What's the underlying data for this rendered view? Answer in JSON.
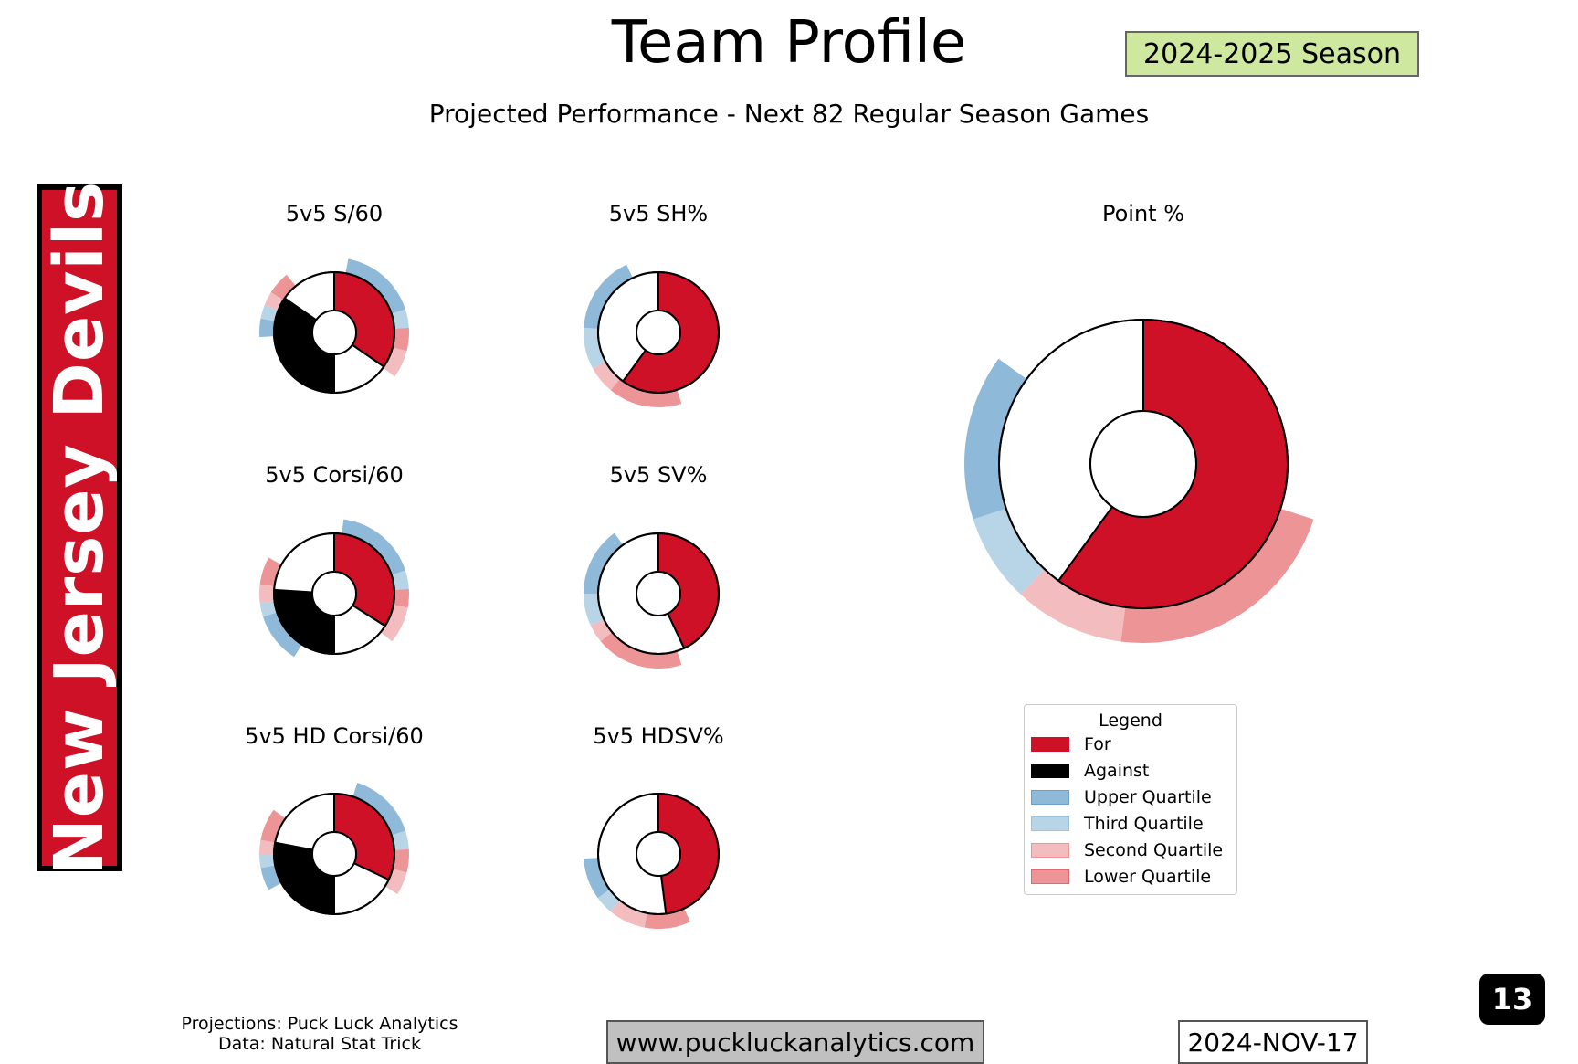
{
  "header": {
    "title": "Team Profile",
    "subtitle": "Projected Performance - Next 82 Regular Season Games",
    "season_badge": "2024-2025 Season"
  },
  "team": {
    "name": "New Jersey Devils",
    "color": "#ce1126"
  },
  "colors": {
    "for": "#ce1126",
    "against": "#000000",
    "upper_quartile": "#8fb9d9",
    "third_quartile": "#b7d5e7",
    "second_quartile": "#f3bcbe",
    "lower_quartile": "#ec9496"
  },
  "legend": {
    "title": "Legend",
    "items": [
      "For",
      "Against",
      "Upper Quartile",
      "Third Quartile",
      "Second Quartile",
      "Lower Quartile"
    ]
  },
  "chart_data": [
    {
      "type": "pie",
      "title": "5v5 S/60",
      "wedges": [
        {
          "series": "For",
          "fraction": 0.18
        },
        {
          "series": "Empty",
          "fraction": 0.08
        },
        {
          "series": "Against",
          "fraction": 0.18
        },
        {
          "series": "Empty",
          "fraction": 0.08
        }
      ],
      "quartile_ring": [
        {
          "quartile": "Upper",
          "from": 0.03,
          "to": 0.2
        },
        {
          "quartile": "Third",
          "from": 0.2,
          "to": 0.24
        },
        {
          "quartile": "Lower",
          "from": 0.24,
          "to": 0.29
        },
        {
          "quartile": "Second",
          "from": 0.29,
          "to": 0.35
        },
        {
          "quartile": "Upper",
          "from": 0.74,
          "to": 0.78
        },
        {
          "quartile": "Third",
          "from": 0.78,
          "to": 0.81
        },
        {
          "quartile": "Second",
          "from": 0.81,
          "to": 0.84
        },
        {
          "quartile": "Lower",
          "from": 0.84,
          "to": 0.89
        }
      ]
    },
    {
      "type": "pie",
      "title": "5v5 SH%",
      "wedges": [
        {
          "series": "For",
          "fraction": 0.6
        },
        {
          "series": "Empty",
          "fraction": 0.4
        }
      ],
      "quartile_ring": [
        {
          "quartile": "Lower",
          "from": 0.45,
          "to": 0.61
        },
        {
          "quartile": "Second",
          "from": 0.61,
          "to": 0.67
        },
        {
          "quartile": "Third",
          "from": 0.67,
          "to": 0.76
        },
        {
          "quartile": "Upper",
          "from": 0.76,
          "to": 0.93
        }
      ]
    },
    {
      "type": "pie",
      "title": "Point %",
      "wedges": [
        {
          "series": "For",
          "fraction": 0.6
        },
        {
          "series": "Empty",
          "fraction": 0.4
        }
      ],
      "quartile_ring": [
        {
          "quartile": "Lower",
          "from": 0.3,
          "to": 0.52
        },
        {
          "quartile": "Second",
          "from": 0.52,
          "to": 0.62
        },
        {
          "quartile": "Third",
          "from": 0.62,
          "to": 0.7
        },
        {
          "quartile": "Upper",
          "from": 0.7,
          "to": 0.85
        }
      ]
    },
    {
      "type": "pie",
      "title": "5v5 Corsi/60",
      "wedges": [
        {
          "series": "For",
          "fraction": 0.17
        },
        {
          "series": "Empty",
          "fraction": 0.08
        },
        {
          "series": "Against",
          "fraction": 0.13
        },
        {
          "series": "Empty",
          "fraction": 0.12
        }
      ],
      "quartile_ring": [
        {
          "quartile": "Upper",
          "from": 0.02,
          "to": 0.2
        },
        {
          "quartile": "Third",
          "from": 0.2,
          "to": 0.24
        },
        {
          "quartile": "Lower",
          "from": 0.24,
          "to": 0.28
        },
        {
          "quartile": "Second",
          "from": 0.28,
          "to": 0.36
        },
        {
          "quartile": "Upper",
          "from": 0.59,
          "to": 0.7
        },
        {
          "quartile": "Third",
          "from": 0.7,
          "to": 0.73
        },
        {
          "quartile": "Second",
          "from": 0.73,
          "to": 0.77
        },
        {
          "quartile": "Lower",
          "from": 0.77,
          "to": 0.83
        }
      ]
    },
    {
      "type": "pie",
      "title": "5v5 SV%",
      "wedges": [
        {
          "series": "For",
          "fraction": 0.43
        },
        {
          "series": "Empty",
          "fraction": 0.57
        }
      ],
      "quartile_ring": [
        {
          "quartile": "Lower",
          "from": 0.45,
          "to": 0.64
        },
        {
          "quartile": "Second",
          "from": 0.64,
          "to": 0.68
        },
        {
          "quartile": "Third",
          "from": 0.68,
          "to": 0.75
        },
        {
          "quartile": "Upper",
          "from": 0.75,
          "to": 0.9
        }
      ]
    },
    {
      "type": "pie",
      "title": "5v5 HD Corsi/60",
      "wedges": [
        {
          "series": "For",
          "fraction": 0.16
        },
        {
          "series": "Empty",
          "fraction": 0.09
        },
        {
          "series": "Against",
          "fraction": 0.14
        },
        {
          "series": "Empty",
          "fraction": 0.11
        }
      ],
      "quartile_ring": [
        {
          "quartile": "Upper",
          "from": 0.05,
          "to": 0.2
        },
        {
          "quartile": "Third",
          "from": 0.2,
          "to": 0.24
        },
        {
          "quartile": "Lower",
          "from": 0.24,
          "to": 0.29
        },
        {
          "quartile": "Second",
          "from": 0.29,
          "to": 0.34
        },
        {
          "quartile": "Upper",
          "from": 0.67,
          "to": 0.72
        },
        {
          "quartile": "Third",
          "from": 0.72,
          "to": 0.75
        },
        {
          "quartile": "Second",
          "from": 0.75,
          "to": 0.78
        },
        {
          "quartile": "Lower",
          "from": 0.78,
          "to": 0.85
        }
      ]
    },
    {
      "type": "pie",
      "title": "5v5 HDSV%",
      "wedges": [
        {
          "series": "For",
          "fraction": 0.48
        },
        {
          "series": "Empty",
          "fraction": 0.52
        }
      ],
      "quartile_ring": [
        {
          "quartile": "Lower",
          "from": 0.43,
          "to": 0.53
        },
        {
          "quartile": "Second",
          "from": 0.53,
          "to": 0.61
        },
        {
          "quartile": "Third",
          "from": 0.61,
          "to": 0.65
        },
        {
          "quartile": "Upper",
          "from": 0.65,
          "to": 0.74
        }
      ]
    }
  ],
  "footer": {
    "credits_line1": "Projections: Puck Luck Analytics",
    "credits_line2": "Data: Natural Stat Trick",
    "website": "www.puckluckanalytics.com",
    "date": "2024-NOV-17",
    "page_number": "13"
  }
}
